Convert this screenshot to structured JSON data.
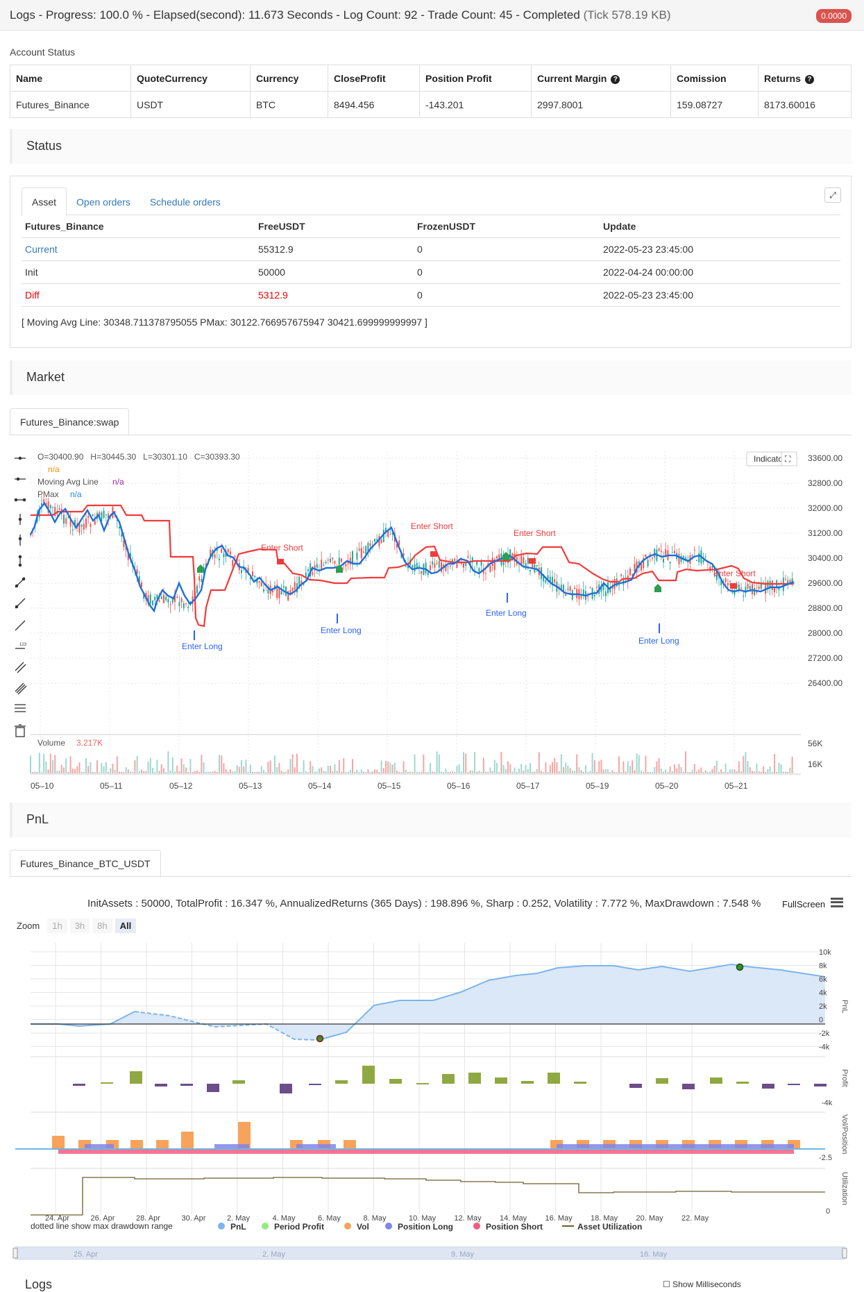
{
  "header": {
    "title": "Logs - Progress: 100.0 % - Elapsed(second): 11.673 Seconds - Log Count: 92 - Trade Count: 45 - Completed",
    "tick": "(Tick 578.19 KB)",
    "badge": "0.0000"
  },
  "account": {
    "label": "Account Status",
    "headers": [
      "Name",
      "QuoteCurrency",
      "Currency",
      "CloseProfit",
      "Position Profit",
      "Current Margin",
      "Comission",
      "Returns"
    ],
    "row": [
      "Futures_Binance",
      "USDT",
      "BTC",
      "8494.456",
      "-143.201",
      "2997.8001",
      "159.08727",
      "8173.60016"
    ]
  },
  "sections": {
    "status": "Status",
    "market": "Market",
    "pnl": "PnL",
    "logs": "Logs"
  },
  "status_panel": {
    "tabs": [
      "Asset",
      "Open orders",
      "Schedule orders"
    ],
    "headers": [
      "Futures_Binance",
      "FreeUSDT",
      "FrozenUSDT",
      "Update"
    ],
    "rows": [
      [
        "Current",
        "55312.9",
        "0",
        "2022-05-23 23:45:00"
      ],
      [
        "Init",
        "50000",
        "0",
        "2022-04-24 00:00:00"
      ],
      [
        "Diff",
        "5312.9",
        "0",
        "2022-05-23 23:45:00"
      ]
    ],
    "message": "[ Moving Avg Line: 30348.711378795055 PMax: 30122.766957675947 30421.699999999997 ]"
  },
  "market": {
    "tab": "Futures_Binance:swap",
    "ohlc": {
      "o": "O=30400.90",
      "h": "H=30445.30",
      "l": "L=30301.10",
      "c": "C=30393.30"
    },
    "na": "n/a",
    "legend": [
      "Moving Avg Line",
      "PMax"
    ],
    "indicator_button": "Indicator",
    "price_ticks": [
      "33600.00",
      "32800.00",
      "32000.00",
      "31200.00",
      "30400.00",
      "29600.00",
      "28800.00",
      "28000.00",
      "27200.00",
      "26400.00"
    ],
    "volume_label": "Volume",
    "volume_value": "3.217K",
    "volume_ticks": [
      "56K",
      "16K"
    ],
    "dates": [
      "05–10",
      "05–11",
      "05–12",
      "05–13",
      "05–14",
      "05–15",
      "05–16",
      "05–17",
      "05–19",
      "05–20",
      "05–21"
    ],
    "signals": [
      "Enter Short",
      "Enter Long"
    ]
  },
  "pnl": {
    "tab": "Futures_Binance_BTC_USDT",
    "summary": "InitAssets : 50000, TotalProfit : 16.347 %, AnnualizedReturns (365 Days) : 198.896 %, Sharp : 0.252, Volatility : 7.772 %, MaxDrawdown : 7.548 %",
    "fullscreen": "FullScreen",
    "zoom_label": "Zoom",
    "zoom": [
      "1h",
      "3h",
      "8h",
      "All"
    ],
    "pnl_ticks": [
      "10k",
      "8k",
      "6k",
      "4k",
      "2k",
      "0",
      "-2k",
      "-4k"
    ],
    "profit_tick": "-4k",
    "vol_ticks": [
      "-2.5"
    ],
    "util_ticks": [
      "0"
    ],
    "axis_titles": [
      "PnL",
      "Profit",
      "Vol/Position",
      "Utilization"
    ],
    "x_dates": [
      "24. Apr",
      "26. Apr",
      "28. Apr",
      "30. Apr",
      "2. May",
      "4. May",
      "6. May",
      "8. May",
      "10. May",
      "12. May",
      "14. May",
      "16. May",
      "18. May",
      "20. May",
      "22. May"
    ],
    "note": "dotted line show max drawdown range",
    "legend": [
      "PnL",
      "Period Profit",
      "Vol",
      "Position Long",
      "Position Short",
      "Asset Utilization"
    ],
    "navigator": [
      "25. Apr",
      "2. May",
      "9. May",
      "16. May"
    ],
    "colors": {
      "pnl": "#7cb5ec",
      "profit": "#8fa842",
      "loss": "#6b4e8a",
      "vol": "#f7a35c",
      "long": "#8085e9",
      "short": "#f15c80",
      "util": "#6b5d2a"
    }
  },
  "logs_controls": "Show Milliseconds"
}
